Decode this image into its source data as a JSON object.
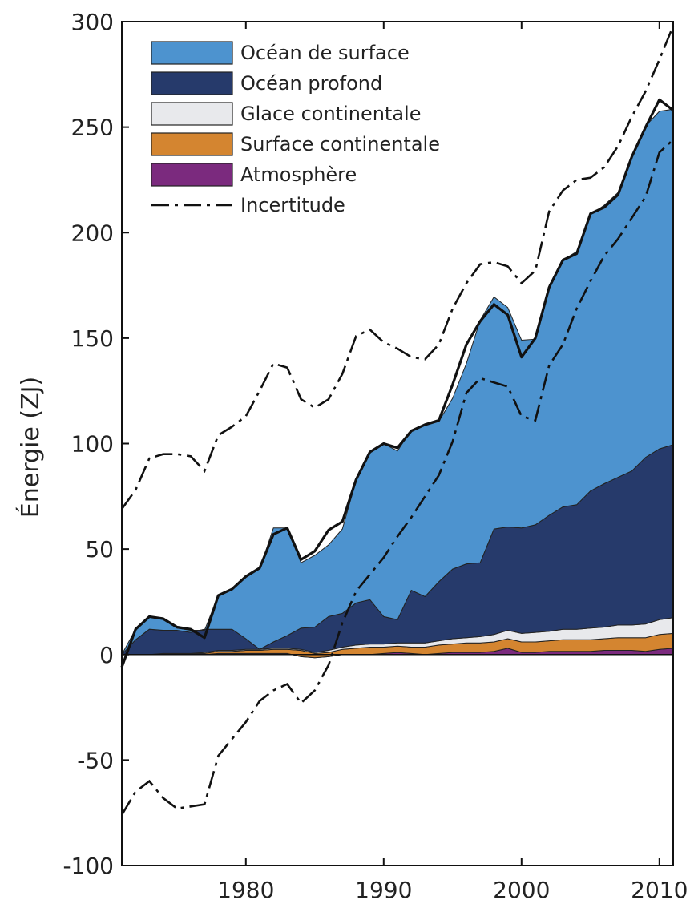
{
  "chart_data": {
    "type": "area",
    "title": "",
    "xlabel": "",
    "ylabel": "Énergie (ZJ)",
    "xlim": [
      1971,
      2011
    ],
    "ylim": [
      -100,
      300
    ],
    "x_ticks": [
      "1980",
      "1990",
      "2000",
      "2010"
    ],
    "x_tick_values": [
      1980,
      1990,
      2000,
      2010
    ],
    "y_ticks": [
      "300",
      "250",
      "200",
      "150",
      "100",
      "50",
      "0",
      "-50",
      "-100"
    ],
    "y_tick_values": [
      300,
      250,
      200,
      150,
      100,
      50,
      0,
      -50,
      -100
    ],
    "grid": false,
    "legend_position": "top-left",
    "x": [
      1971,
      1972,
      1973,
      1974,
      1975,
      1976,
      1977,
      1978,
      1979,
      1980,
      1981,
      1982,
      1983,
      1984,
      1985,
      1986,
      1987,
      1988,
      1989,
      1990,
      1991,
      1992,
      1993,
      1994,
      1995,
      1996,
      1997,
      1998,
      1999,
      2000,
      2001,
      2002,
      2003,
      2004,
      2005,
      2006,
      2007,
      2008,
      2009,
      2010,
      2011
    ],
    "series": [
      {
        "name": "Atmosphère",
        "color": "#7b2a7e",
        "values": [
          0,
          0,
          0,
          0,
          0,
          0,
          0,
          0.5,
          0.5,
          0.5,
          0.5,
          0.5,
          0.5,
          -1,
          -1.5,
          -1,
          0,
          0,
          0,
          0.5,
          1,
          0.5,
          0,
          0.5,
          1,
          1,
          1,
          1.5,
          3,
          1,
          1,
          1.5,
          1.5,
          1.5,
          1.5,
          2,
          2,
          2,
          1.5,
          2.5,
          3
        ]
      },
      {
        "name": "Surface continentale",
        "color": "#d48530",
        "values": [
          0,
          0,
          0,
          0.5,
          0.5,
          0.5,
          0.5,
          1,
          1,
          1.5,
          1.5,
          2,
          2,
          3,
          2,
          2,
          2.5,
          3,
          3.5,
          3,
          3,
          3,
          3.5,
          4,
          4,
          4.5,
          4.5,
          4.5,
          4.5,
          5,
          5,
          5,
          5.5,
          5.5,
          5.5,
          5.5,
          6,
          6,
          6.5,
          7,
          7
        ]
      },
      {
        "name": "Glace continentale",
        "color": "#e8e9ec",
        "values": [
          0,
          0,
          0,
          0,
          0,
          0,
          0.5,
          0.5,
          0.5,
          0.5,
          0.5,
          0.5,
          0.5,
          0.5,
          0.5,
          1,
          1,
          1.5,
          1.5,
          1.5,
          1.5,
          2,
          2,
          2,
          2.5,
          2.5,
          3,
          3.5,
          4,
          4,
          4.5,
          4.5,
          5,
          5,
          5.5,
          5.5,
          6,
          6,
          6.5,
          7,
          7.5
        ]
      },
      {
        "name": "Océan profond",
        "color": "#263a6b",
        "values": [
          0,
          7,
          12,
          11,
          11,
          10,
          11,
          10,
          10,
          5,
          0,
          3,
          6,
          10,
          12,
          16,
          16,
          20,
          21,
          13,
          11,
          25,
          22,
          28,
          33,
          35,
          35,
          50,
          49,
          50,
          51,
          55,
          58,
          59,
          65,
          68,
          70,
          73,
          79,
          81,
          82
        ]
      },
      {
        "name": "Océan de surface",
        "color": "#4d93cf",
        "values": [
          0,
          5,
          6,
          5,
          1,
          1,
          -0.5,
          16,
          19,
          29,
          38,
          54,
          51,
          31,
          34,
          34,
          40,
          58,
          70,
          82,
          80,
          76,
          81,
          76,
          81,
          95,
          115,
          110,
          104,
          89,
          88,
          109,
          117,
          120,
          131,
          132,
          135,
          149,
          157,
          160,
          159
        ]
      }
    ],
    "total": [
      -6,
      12,
      18,
      17,
      13,
      12,
      8,
      28,
      31,
      37,
      41,
      57,
      60,
      45,
      49,
      59,
      63,
      83,
      96,
      100,
      98,
      106,
      109,
      111,
      128,
      147,
      158,
      166,
      161,
      141,
      150,
      174,
      187,
      190,
      209,
      212,
      218,
      236,
      250,
      263,
      258
    ],
    "uncertainty": {
      "name": "Incertitude",
      "upper": [
        69,
        78,
        93,
        95,
        95,
        94,
        87,
        104,
        108,
        113,
        125,
        138,
        136,
        121,
        117,
        121,
        133,
        151,
        154,
        148,
        145,
        141,
        140,
        147,
        164,
        176,
        185,
        186,
        184,
        176,
        182,
        210,
        220,
        225,
        226,
        231,
        241,
        255,
        267,
        282,
        298
      ],
      "lower": [
        -76,
        -65,
        -60,
        -68,
        -73,
        -72,
        -71,
        -48,
        -40,
        -32,
        -22,
        -17,
        -14,
        -23,
        -17,
        -5,
        15,
        30,
        38,
        46,
        56,
        65,
        75,
        85,
        101,
        124,
        131,
        129,
        127,
        113,
        111,
        137,
        147,
        164,
        177,
        189,
        197,
        207,
        217,
        238,
        244
      ]
    },
    "legend": [
      {
        "label": "Océan de surface",
        "color": "#4d93cf",
        "kind": "swatch"
      },
      {
        "label": "Océan profond",
        "color": "#263a6b",
        "kind": "swatch"
      },
      {
        "label": "Glace continentale",
        "color": "#e8e9ec",
        "kind": "swatch"
      },
      {
        "label": "Surface continentale",
        "color": "#d48530",
        "kind": "swatch"
      },
      {
        "label": "Atmosphère",
        "color": "#7b2a7e",
        "kind": "swatch"
      },
      {
        "label": "Incertitude",
        "color": "#111111",
        "kind": "dashdot"
      }
    ]
  }
}
